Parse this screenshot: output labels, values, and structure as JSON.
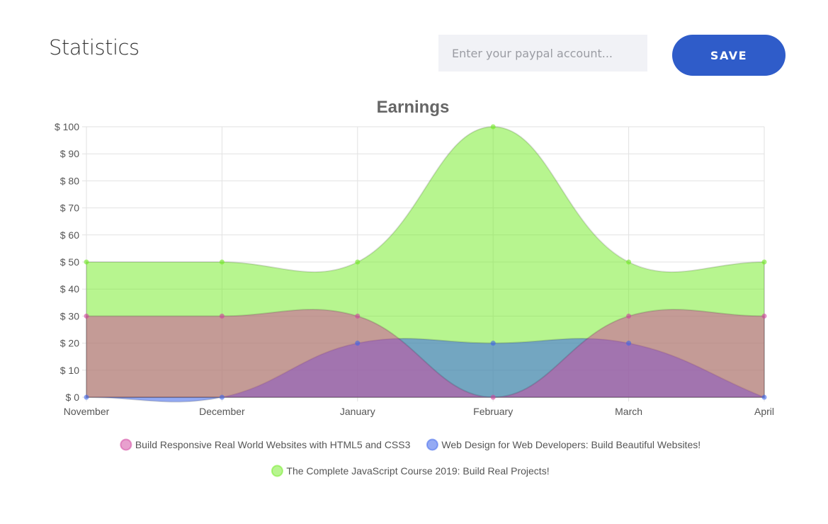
{
  "header": {
    "title": "Statistics",
    "input_placeholder": "Enter your paypal account...",
    "save_label": "SAVE"
  },
  "chart_data": {
    "type": "area",
    "title": "Earnings",
    "categories": [
      "November",
      "December",
      "January",
      "February",
      "March",
      "April"
    ],
    "ylim": [
      0,
      100
    ],
    "yticks": [
      "$ 0",
      "$ 10",
      "$ 20",
      "$ 30",
      "$ 40",
      "$ 50",
      "$ 60",
      "$ 70",
      "$ 80",
      "$ 90",
      "$ 100"
    ],
    "grid": true,
    "legend_position": "bottom",
    "series": [
      {
        "name": "Build Responsive Real World Websites with HTML5 and CSS3",
        "values": [
          30,
          30,
          30,
          0,
          30,
          30
        ],
        "color": "#d1419d"
      },
      {
        "name": "Web Design for Web Developers: Build Beautiful Websites!",
        "values": [
          0,
          0,
          20,
          20,
          20,
          0
        ],
        "color": "#3c64eb"
      },
      {
        "name": "The Complete JavaScript Course 2019: Build Real Projects!",
        "values": [
          50,
          50,
          50,
          100,
          50,
          50
        ],
        "color": "#6feb1f"
      }
    ]
  }
}
